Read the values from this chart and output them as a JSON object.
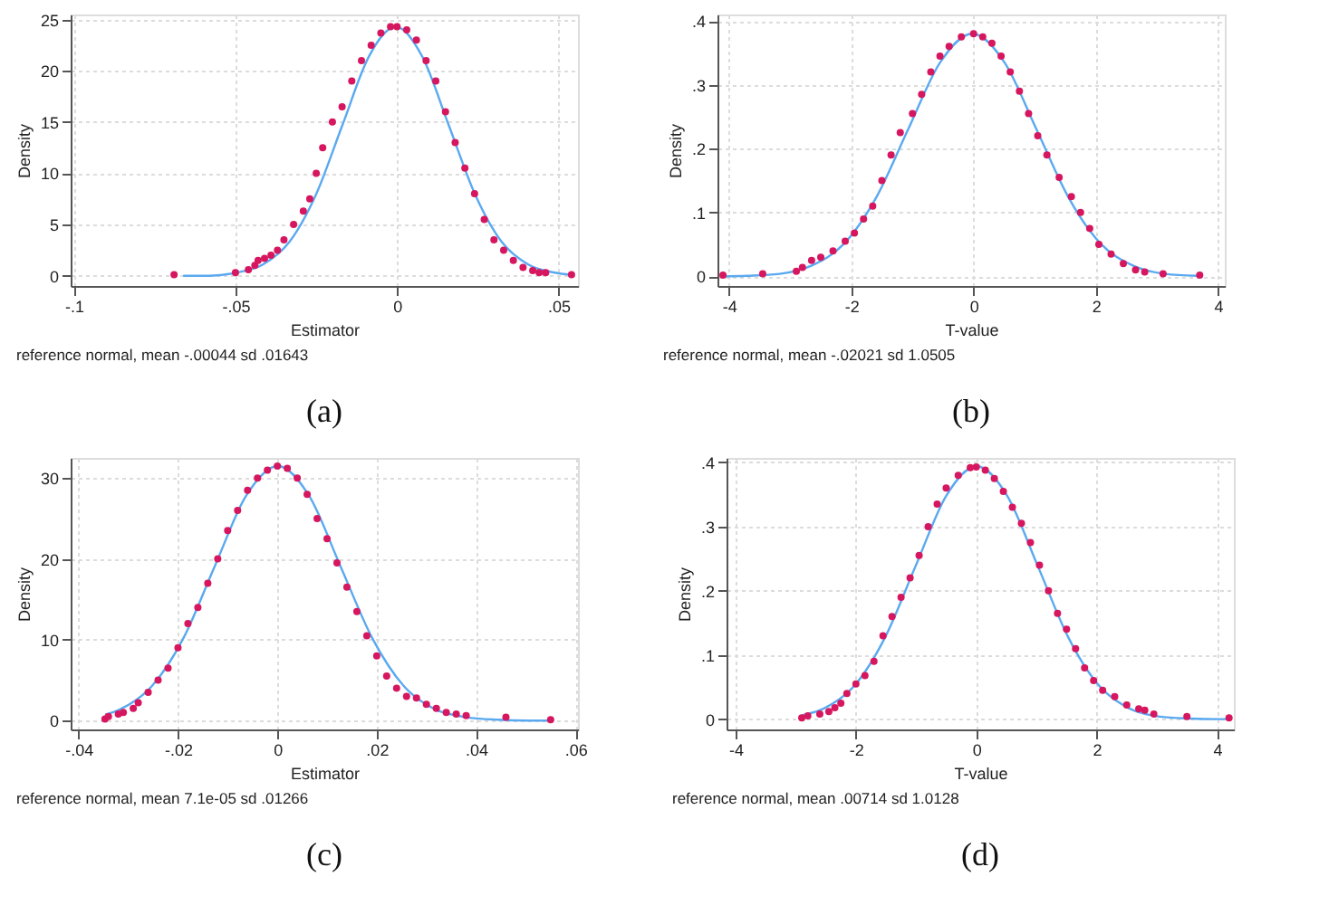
{
  "chart_data": [
    {
      "type": "scatter",
      "xlabel": "Estimator",
      "ylabel": "Density",
      "grid": true,
      "xlim": [
        -0.101,
        0.056
      ],
      "ylim": [
        -1,
        25.5
      ],
      "xticks": [
        {
          "value": -0.1,
          "label": "-.1"
        },
        {
          "value": -0.05,
          "label": "-.05"
        },
        0,
        {
          "value": 0.05,
          "label": ".05"
        }
      ],
      "yticks": [
        0,
        5,
        10,
        15,
        20,
        25
      ],
      "annotations": [
        "reference normal, mean -.00044 sd .01643",
        "(a)"
      ],
      "series": [
        {
          "type": "line",
          "color": "#5aa9f0",
          "line_style": "solid",
          "marker": "none",
          "x": [
            -0.0662,
            -0.058,
            -0.0497,
            -0.0415,
            -0.0333,
            -0.0251,
            -0.0169,
            -0.0087,
            -0.0004,
            0.0078,
            0.016,
            0.0242,
            0.0324,
            0.0406,
            0.0488,
            0.0538
          ],
          "values": [
            0.0,
            0.0,
            0.3,
            1.1,
            3.3,
            7.9,
            14.7,
            21.4,
            24.3,
            21.4,
            14.7,
            7.9,
            3.3,
            1.1,
            0.3,
            0.1
          ]
        },
        {
          "type": "scatter",
          "color": "#d6175f",
          "marker": "circle",
          "x": [
            -0.069,
            -0.05,
            -0.046,
            -0.044,
            -0.043,
            -0.041,
            -0.039,
            -0.037,
            -0.035,
            -0.032,
            -0.029,
            -0.027,
            -0.025,
            -0.023,
            -0.02,
            -0.017,
            -0.014,
            -0.011,
            -0.008,
            -0.005,
            -0.002,
            0,
            0.003,
            0.006,
            0.009,
            0.012,
            0.015,
            0.018,
            0.021,
            0.024,
            0.027,
            0.03,
            0.033,
            0.036,
            0.039,
            0.042,
            0.044,
            0.046,
            0.054
          ],
          "values": [
            0.1,
            0.3,
            0.6,
            1.0,
            1.5,
            1.7,
            2.0,
            2.5,
            3.5,
            5,
            6.3,
            7.5,
            10,
            12.5,
            15,
            16.5,
            19,
            21,
            22.5,
            23.7,
            24.3,
            24.3,
            24,
            23,
            21,
            19,
            16,
            13,
            10.5,
            8,
            5.5,
            3.5,
            2.5,
            1.5,
            0.8,
            0.5,
            0.3,
            0.3,
            0.1
          ]
        }
      ]
    },
    {
      "type": "scatter",
      "xlabel": "T-value",
      "ylabel": "Density",
      "grid": true,
      "xlim": [
        -4.19,
        4.11
      ],
      "ylim": [
        -0.015,
        0.41
      ],
      "xticks": [
        -4,
        -2,
        0,
        2,
        4
      ],
      "yticks": [
        0,
        {
          "value": 0.1,
          "label": ".1"
        },
        {
          "value": 0.2,
          "label": ".2"
        },
        {
          "value": 0.3,
          "label": ".3"
        },
        {
          "value": 0.4,
          "label": ".4"
        }
      ],
      "annotations": [
        "reference normal, mean -.02021 sd 1.0505",
        "(b)"
      ],
      "series": [
        {
          "type": "line",
          "color": "#5aa9f0",
          "line_style": "solid",
          "marker": "none",
          "x": [
            -4.117,
            -3.697,
            -3.172,
            -2.646,
            -2.121,
            -1.596,
            -1.071,
            -0.546,
            -0.02,
            0.505,
            1.03,
            1.556,
            2.081,
            2.606,
            3.131,
            3.657
          ],
          "values": [
            0.0,
            0.001,
            0.004,
            0.017,
            0.051,
            0.123,
            0.23,
            0.335,
            0.38,
            0.335,
            0.23,
            0.123,
            0.051,
            0.017,
            0.004,
            0.001
          ]
        },
        {
          "type": "scatter",
          "color": "#d6175f",
          "marker": "circle",
          "x": [
            -4.1,
            -3.45,
            -2.9,
            -2.8,
            -2.65,
            -2.5,
            -2.3,
            -2.1,
            -1.95,
            -1.8,
            -1.65,
            -1.5,
            -1.35,
            -1.2,
            -1.0,
            -0.85,
            -0.7,
            -0.55,
            -0.4,
            -0.2,
            0,
            0.15,
            0.3,
            0.45,
            0.6,
            0.75,
            0.9,
            1.05,
            1.2,
            1.4,
            1.6,
            1.75,
            1.9,
            2.05,
            2.25,
            2.45,
            2.65,
            2.8,
            3.1,
            3.7
          ],
          "values": [
            0.002,
            0.004,
            0.008,
            0.014,
            0.025,
            0.03,
            0.04,
            0.055,
            0.068,
            0.09,
            0.11,
            0.15,
            0.19,
            0.225,
            0.255,
            0.285,
            0.32,
            0.345,
            0.36,
            0.375,
            0.38,
            0.375,
            0.365,
            0.345,
            0.32,
            0.29,
            0.255,
            0.22,
            0.19,
            0.155,
            0.125,
            0.1,
            0.075,
            0.05,
            0.035,
            0.02,
            0.01,
            0.007,
            0.004,
            0.002
          ]
        }
      ]
    },
    {
      "type": "scatter",
      "xlabel": "Estimator",
      "ylabel": "Density",
      "grid": true,
      "xlim": [
        -0.0416,
        0.0605
      ],
      "ylim": [
        -1.1,
        32.5
      ],
      "xticks": [
        {
          "value": -0.04,
          "label": "-.04"
        },
        {
          "value": -0.02,
          "label": "-.02"
        },
        0,
        {
          "value": 0.02,
          "label": ".02"
        },
        {
          "value": 0.04,
          "label": ".04"
        },
        {
          "value": 0.06,
          "label": ".06"
        }
      ],
      "yticks": [
        0,
        10,
        20,
        30
      ],
      "annotations": [
        "reference normal, mean 7.1e-05 sd .01266",
        "(c)"
      ],
      "series": [
        {
          "type": "line",
          "color": "#5aa9f0",
          "line_style": "solid",
          "marker": "none",
          "x": [
            -0.0347,
            -0.0316,
            -0.0252,
            -0.0189,
            -0.0126,
            -0.0063,
            0.0001,
            0.0064,
            0.0127,
            0.0191,
            0.0254,
            0.0317,
            0.0381,
            0.0444,
            0.0507,
            0.0545
          ],
          "values": [
            0.7,
            1.4,
            4.3,
            10.2,
            19.1,
            27.8,
            31.5,
            27.8,
            19.1,
            10.2,
            4.3,
            1.4,
            0.4,
            0.1,
            0.0,
            0.0
          ]
        },
        {
          "type": "scatter",
          "color": "#d6175f",
          "marker": "circle",
          "x": [
            -0.0347,
            -0.034,
            -0.032,
            -0.031,
            -0.029,
            -0.028,
            -0.026,
            -0.024,
            -0.022,
            -0.02,
            -0.018,
            -0.016,
            -0.014,
            -0.012,
            -0.01,
            -0.008,
            -0.006,
            -0.004,
            -0.002,
            0,
            0.002,
            0.004,
            0.006,
            0.008,
            0.01,
            0.012,
            0.014,
            0.016,
            0.018,
            0.02,
            0.022,
            0.024,
            0.026,
            0.028,
            0.03,
            0.032,
            0.034,
            0.036,
            0.038,
            0.046,
            0.055
          ],
          "values": [
            0.2,
            0.5,
            0.8,
            1.0,
            1.5,
            2.2,
            3.5,
            5,
            6.5,
            9,
            12,
            14,
            17,
            20,
            23.5,
            26,
            28.5,
            30,
            31,
            31.5,
            31.2,
            30,
            28,
            25,
            22.5,
            19.5,
            16.5,
            13.5,
            10.5,
            8,
            5.5,
            4,
            3,
            2.8,
            2,
            1.5,
            1,
            0.8,
            0.6,
            0.4,
            0.1
          ]
        }
      ]
    },
    {
      "type": "scatter",
      "xlabel": "T-value",
      "ylabel": "Density",
      "grid": true,
      "xlim": [
        -4.15,
        4.28
      ],
      "ylim": [
        -0.016,
        0.407
      ],
      "xticks": [
        -4,
        -2,
        0,
        2,
        4
      ],
      "yticks": [
        0,
        {
          "value": 0.1,
          "label": ".1"
        },
        {
          "value": 0.2,
          "label": ".2"
        },
        {
          "value": 0.3,
          "label": ".3"
        },
        {
          "value": 0.4,
          "label": ".4"
        }
      ],
      "annotations": [
        "reference normal, mean .00714 sd 1.0128",
        "(d)"
      ],
      "series": [
        {
          "type": "line",
          "color": "#5aa9f0",
          "line_style": "solid",
          "marker": "none",
          "x": [
            -2.9,
            -2.525,
            -2.018,
            -1.512,
            -1.006,
            -0.499,
            0.007,
            0.514,
            1.02,
            1.526,
            2.033,
            2.539,
            3.046,
            3.552,
            4.058,
            4.2
          ],
          "values": [
            0.006,
            0.017,
            0.053,
            0.128,
            0.239,
            0.348,
            0.394,
            0.348,
            0.239,
            0.128,
            0.053,
            0.017,
            0.004,
            0.001,
            0.0,
            0.0
          ]
        },
        {
          "type": "scatter",
          "color": "#d6175f",
          "marker": "circle",
          "x": [
            -2.9,
            -2.8,
            -2.6,
            -2.45,
            -2.35,
            -2.25,
            -2.15,
            -2.0,
            -1.85,
            -1.7,
            -1.55,
            -1.4,
            -1.25,
            -1.1,
            -0.95,
            -0.8,
            -0.65,
            -0.5,
            -0.3,
            -0.1,
            0,
            0.15,
            0.3,
            0.45,
            0.6,
            0.75,
            0.9,
            1.05,
            1.2,
            1.35,
            1.5,
            1.65,
            1.8,
            1.95,
            2.1,
            2.3,
            2.5,
            2.7,
            2.8,
            2.95,
            3.5,
            4.2
          ],
          "values": [
            0.002,
            0.005,
            0.008,
            0.012,
            0.018,
            0.025,
            0.04,
            0.055,
            0.068,
            0.09,
            0.13,
            0.16,
            0.19,
            0.22,
            0.255,
            0.3,
            0.335,
            0.36,
            0.38,
            0.392,
            0.393,
            0.388,
            0.375,
            0.355,
            0.33,
            0.305,
            0.275,
            0.24,
            0.2,
            0.165,
            0.14,
            0.11,
            0.08,
            0.06,
            0.045,
            0.035,
            0.022,
            0.016,
            0.014,
            0.008,
            0.004,
            0.002
          ]
        }
      ]
    }
  ]
}
